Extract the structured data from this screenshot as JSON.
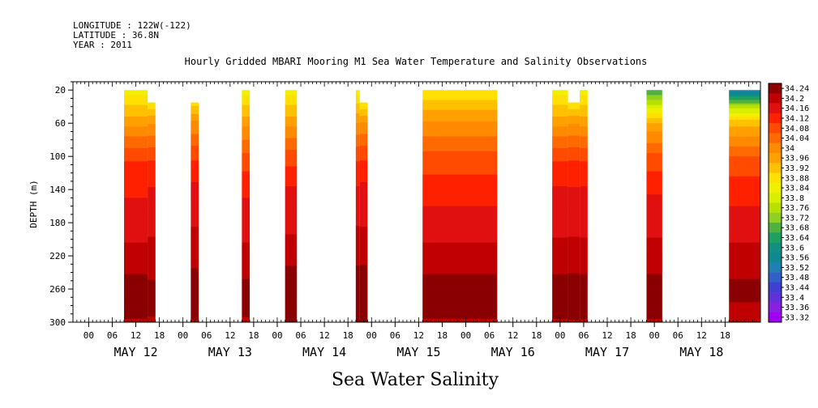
{
  "header": {
    "longitude_line": "LONGITUDE : 122W(-122)",
    "latitude_line": "LATITUDE : 36.8N",
    "year_line": "YEAR : 2011"
  },
  "chart_data": {
    "type": "heatmap",
    "title": "Hourly Gridded MBARI Mooring M1 Sea Water Temperature and Salinity Observations",
    "variable_label": "Sea Water Salinity",
    "ylabel": "DEPTH (m)",
    "xlabel": "",
    "y_inverted": true,
    "ylim": [
      300,
      10
    ],
    "yticks": [
      20,
      60,
      100,
      140,
      180,
      220,
      260,
      300
    ],
    "x_start": "2011-05-11 20:00",
    "x_end": "2011-05-19 03:00",
    "x_hour_ticks": [
      "00",
      "06",
      "12",
      "18",
      "00",
      "06",
      "12",
      "18",
      "00",
      "06",
      "12",
      "18",
      "00",
      "06",
      "12",
      "18",
      "00",
      "06",
      "12",
      "18",
      "00",
      "06",
      "12",
      "18",
      "00",
      "06",
      "12",
      "18"
    ],
    "day_labels": [
      "MAY 12",
      "MAY 13",
      "MAY 14",
      "MAY 15",
      "MAY 16",
      "MAY 17",
      "MAY 18"
    ],
    "colorbar": {
      "min": 33.32,
      "max": 34.24,
      "tick_labels": [
        "34.24",
        "34.2",
        "34.16",
        "34.12",
        "34.08",
        "34.04",
        "34",
        "33.96",
        "33.92",
        "33.88",
        "33.84",
        "33.8",
        "33.76",
        "33.72",
        "33.68",
        "33.64",
        "33.6",
        "33.56",
        "33.52",
        "33.48",
        "33.44",
        "33.4",
        "33.36",
        "33.32"
      ],
      "colors": [
        "#8b0000",
        "#c00000",
        "#e01010",
        "#ff2000",
        "#ff4a00",
        "#ff6a00",
        "#ff8a00",
        "#ffa000",
        "#ffc000",
        "#ffe000",
        "#f0f000",
        "#d8f000",
        "#b8e000",
        "#90d020",
        "#50b040",
        "#20a060",
        "#109080",
        "#108890",
        "#2080b0",
        "#3060c8",
        "#4040d0",
        "#6030d8",
        "#8820e0",
        "#a000f0"
      ]
    },
    "data_segments": [
      {
        "start": "2011-05-12 09:00",
        "end": "2011-05-12 15:00",
        "top_depth": 20,
        "profile": [
          [
            20,
            33.84
          ],
          [
            60,
            33.96
          ],
          [
            100,
            34.08
          ],
          [
            140,
            34.12
          ],
          [
            180,
            34.14
          ],
          [
            220,
            34.18
          ],
          [
            260,
            34.22
          ],
          [
            300,
            34.2
          ]
        ]
      },
      {
        "start": "2011-05-12 15:00",
        "end": "2011-05-12 17:00",
        "top_depth": 35,
        "profile": [
          [
            35,
            33.86
          ],
          [
            60,
            33.97
          ],
          [
            100,
            34.08
          ],
          [
            140,
            34.13
          ],
          [
            180,
            34.15
          ],
          [
            220,
            34.18
          ],
          [
            260,
            34.21
          ],
          [
            300,
            34.2
          ]
        ]
      },
      {
        "start": "2011-05-13 02:00",
        "end": "2011-05-13 04:00",
        "top_depth": 35,
        "profile": [
          [
            35,
            33.88
          ],
          [
            60,
            33.98
          ],
          [
            100,
            34.08
          ],
          [
            140,
            34.14
          ],
          [
            180,
            34.16
          ],
          [
            220,
            34.19
          ],
          [
            260,
            34.22
          ],
          [
            300,
            34.2
          ]
        ]
      },
      {
        "start": "2011-05-13 15:00",
        "end": "2011-05-13 17:00",
        "top_depth": 20,
        "profile": [
          [
            20,
            33.84
          ],
          [
            60,
            33.96
          ],
          [
            100,
            34.06
          ],
          [
            140,
            34.12
          ],
          [
            180,
            34.14
          ],
          [
            220,
            34.18
          ],
          [
            260,
            34.21
          ],
          [
            300,
            34.2
          ]
        ]
      },
      {
        "start": "2011-05-14 02:00",
        "end": "2011-05-14 05:00",
        "top_depth": 20,
        "profile": [
          [
            20,
            33.84
          ],
          [
            60,
            33.96
          ],
          [
            100,
            34.07
          ],
          [
            140,
            34.13
          ],
          [
            180,
            34.15
          ],
          [
            220,
            34.19
          ],
          [
            260,
            34.23
          ],
          [
            300,
            34.21
          ]
        ]
      },
      {
        "start": "2011-05-14 20:00",
        "end": "2011-05-14 21:00",
        "top_depth": 20,
        "profile": [
          [
            20,
            33.84
          ],
          [
            60,
            33.97
          ],
          [
            100,
            34.08
          ],
          [
            140,
            34.13
          ],
          [
            180,
            34.16
          ],
          [
            220,
            34.19
          ],
          [
            260,
            34.23
          ],
          [
            300,
            34.21
          ]
        ]
      },
      {
        "start": "2011-05-14 21:00",
        "end": "2011-05-14 23:00",
        "top_depth": 35,
        "profile": [
          [
            35,
            33.86
          ],
          [
            60,
            33.98
          ],
          [
            100,
            34.08
          ],
          [
            140,
            34.14
          ],
          [
            180,
            34.16
          ],
          [
            220,
            34.19
          ],
          [
            260,
            34.23
          ],
          [
            300,
            34.21
          ]
        ]
      },
      {
        "start": "2011-05-15 13:00",
        "end": "2011-05-16 08:00",
        "top_depth": 20,
        "profile": [
          [
            20,
            33.86
          ],
          [
            60,
            33.98
          ],
          [
            100,
            34.06
          ],
          [
            140,
            34.11
          ],
          [
            180,
            34.14
          ],
          [
            220,
            34.18
          ],
          [
            260,
            34.22
          ],
          [
            300,
            34.2
          ]
        ]
      },
      {
        "start": "2011-05-16 22:00",
        "end": "2011-05-17 02:00",
        "top_depth": 20,
        "profile": [
          [
            20,
            33.84
          ],
          [
            60,
            33.96
          ],
          [
            100,
            34.08
          ],
          [
            140,
            34.13
          ],
          [
            180,
            34.15
          ],
          [
            220,
            34.18
          ],
          [
            260,
            34.22
          ],
          [
            300,
            34.2
          ]
        ]
      },
      {
        "start": "2011-05-17 02:00",
        "end": "2011-05-17 05:00",
        "top_depth": 35,
        "profile": [
          [
            35,
            33.86
          ],
          [
            60,
            33.97
          ],
          [
            100,
            34.08
          ],
          [
            140,
            34.13
          ],
          [
            180,
            34.15
          ],
          [
            220,
            34.18
          ],
          [
            260,
            34.22
          ],
          [
            300,
            34.2
          ]
        ]
      },
      {
        "start": "2011-05-17 05:00",
        "end": "2011-05-17 07:00",
        "top_depth": 20,
        "profile": [
          [
            20,
            33.84
          ],
          [
            60,
            33.96
          ],
          [
            100,
            34.08
          ],
          [
            140,
            34.13
          ],
          [
            180,
            34.15
          ],
          [
            220,
            34.18
          ],
          [
            260,
            34.22
          ],
          [
            300,
            34.2
          ]
        ]
      },
      {
        "start": "2011-05-17 22:00",
        "end": "2011-05-18 02:00",
        "top_depth": 20,
        "profile": [
          [
            20,
            33.66
          ],
          [
            40,
            33.8
          ],
          [
            60,
            33.94
          ],
          [
            100,
            34.06
          ],
          [
            140,
            34.12
          ],
          [
            180,
            34.15
          ],
          [
            220,
            34.18
          ],
          [
            260,
            34.22
          ],
          [
            300,
            34.2
          ]
        ]
      },
      {
        "start": "2011-05-18 19:00",
        "end": "2011-05-19 03:00",
        "top_depth": 20,
        "profile": [
          [
            20,
            33.52
          ],
          [
            40,
            33.76
          ],
          [
            60,
            33.92
          ],
          [
            100,
            34.05
          ],
          [
            140,
            34.11
          ],
          [
            180,
            34.14
          ],
          [
            220,
            34.18
          ],
          [
            260,
            34.21
          ],
          [
            300,
            34.19
          ]
        ]
      }
    ]
  }
}
